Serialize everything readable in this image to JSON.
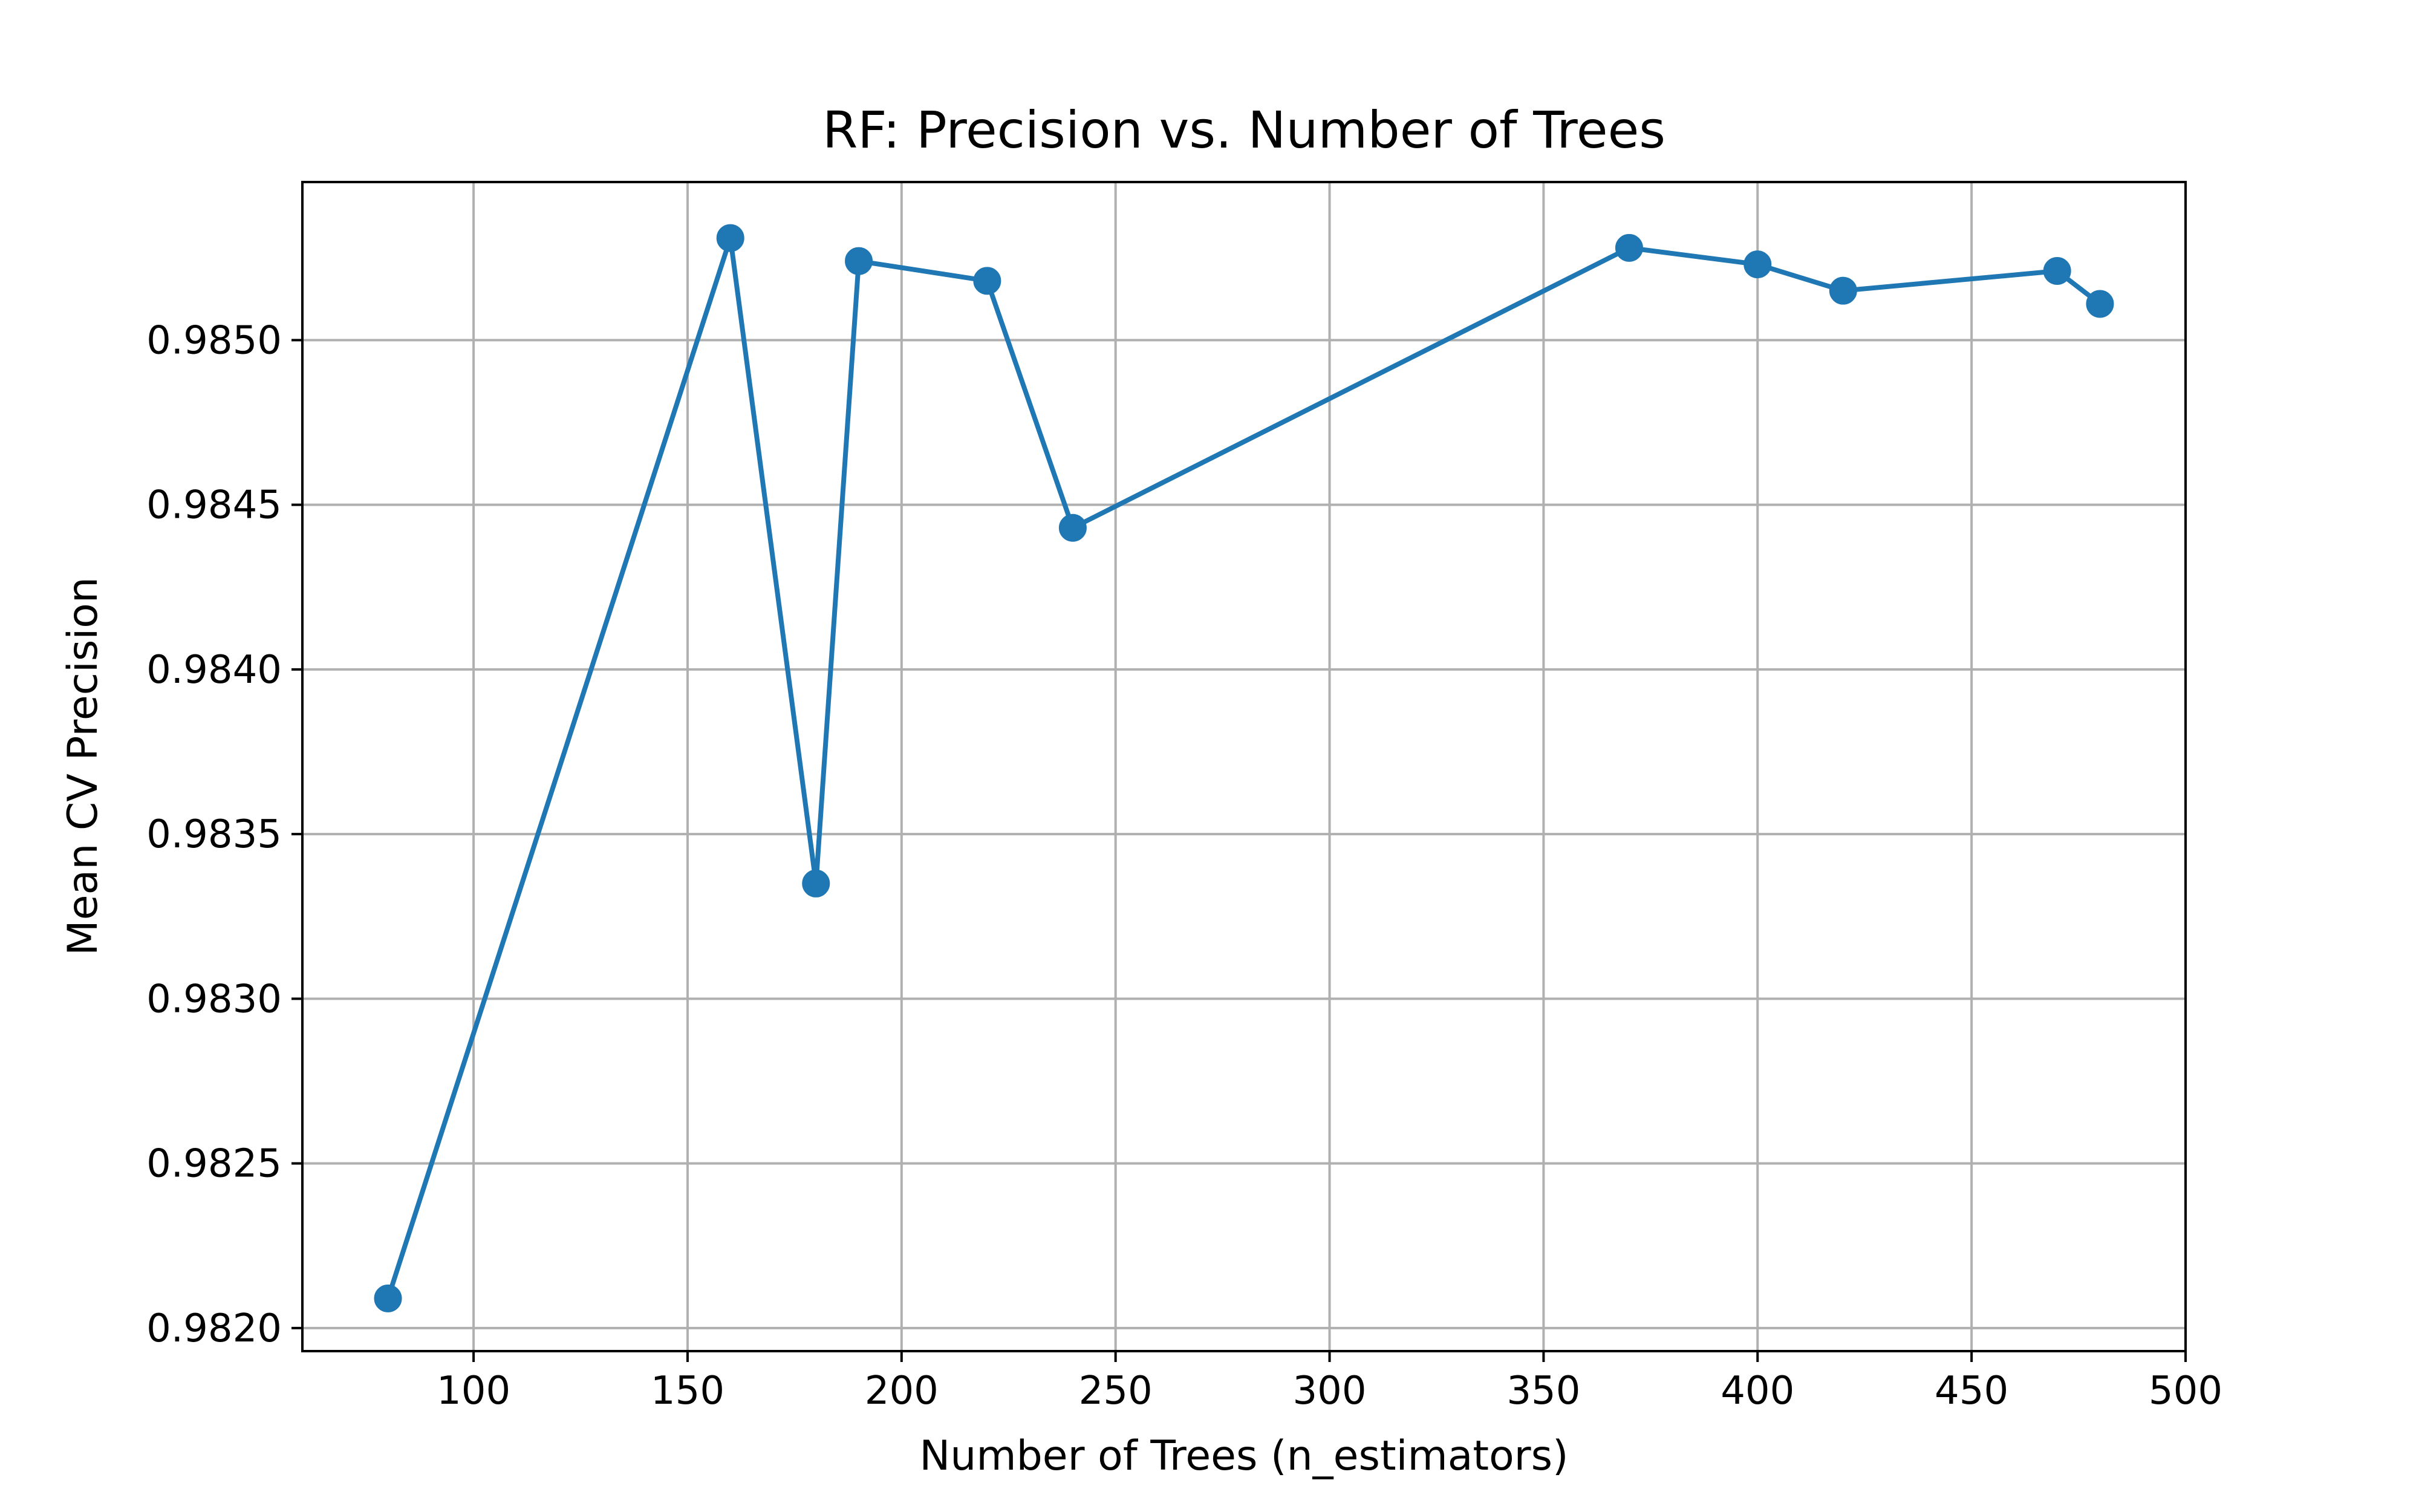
{
  "chart_data": {
    "type": "line",
    "title": "RF: Precision vs. Number of Trees",
    "xlabel": "Number of Trees (n_estimators)",
    "ylabel": "Mean CV Precision",
    "xlim": [
      60,
      500
    ],
    "ylim": [
      0.98193,
      0.98548
    ],
    "x_ticks": [
      100,
      150,
      200,
      250,
      300,
      350,
      400,
      450,
      500
    ],
    "y_ticks": [
      0.982,
      0.9825,
      0.983,
      0.9835,
      0.984,
      0.9845,
      0.985
    ],
    "x_tick_labels": [
      "100",
      "150",
      "200",
      "250",
      "300",
      "350",
      "400",
      "450",
      "500"
    ],
    "y_tick_labels": [
      "0.9820",
      "0.9825",
      "0.9830",
      "0.9835",
      "0.9840",
      "0.9845",
      "0.9850"
    ],
    "grid": true,
    "legend": false,
    "colors": {
      "line": "#1f77b4",
      "marker": "#1f77b4",
      "grid": "#b0b0b0",
      "axes": "#000000",
      "background": "#ffffff"
    },
    "series": [
      {
        "x": [
          80,
          160,
          180,
          190,
          220,
          240,
          370,
          400,
          420,
          470,
          480
        ],
        "values": [
          0.98209,
          0.98531,
          0.98335,
          0.98524,
          0.98518,
          0.98443,
          0.98528,
          0.98523,
          0.98515,
          0.98521,
          0.98511
        ]
      }
    ]
  }
}
